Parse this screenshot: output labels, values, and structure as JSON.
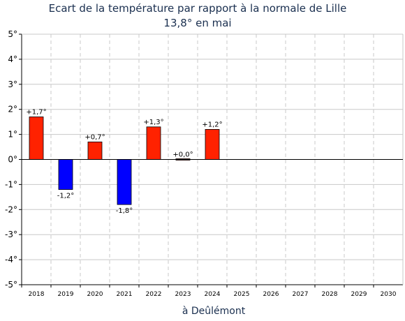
{
  "chart_data": {
    "type": "bar",
    "title": "Ecart de la température par rapport à la normale de Lille",
    "subtitle": "13,8° en mai",
    "xlabel": "à Deûlémont",
    "ylabel": "",
    "ylim": [
      -5,
      5
    ],
    "yticks": [
      {
        "value": 5,
        "label": "5°"
      },
      {
        "value": 4,
        "label": "4°"
      },
      {
        "value": 3,
        "label": "3°"
      },
      {
        "value": 2,
        "label": "2°"
      },
      {
        "value": 1,
        "label": "1°"
      },
      {
        "value": 0,
        "label": "0°"
      },
      {
        "value": -1,
        "label": "-1°"
      },
      {
        "value": -2,
        "label": "-2°"
      },
      {
        "value": -3,
        "label": "-3°"
      },
      {
        "value": -4,
        "label": "-4°"
      },
      {
        "value": -5,
        "label": "-5°"
      }
    ],
    "categories": [
      "2018",
      "2019",
      "2020",
      "2021",
      "2022",
      "2023",
      "2024",
      "2025",
      "2026",
      "2027",
      "2028",
      "2029",
      "2030"
    ],
    "values": [
      1.7,
      -1.2,
      0.7,
      -1.8,
      1.3,
      0.0,
      1.2,
      null,
      null,
      null,
      null,
      null,
      null
    ],
    "data_labels": [
      "+1,7°",
      "-1,2°",
      "+0,7°",
      "-1,8°",
      "+1,3°",
      "+0,0°",
      "+1,2°",
      "",
      "",
      "",
      "",
      "",
      ""
    ],
    "grid": true,
    "colors": {
      "positive": "#ff2200",
      "negative": "#0000ff",
      "grid": "#c8c8c8",
      "axis": "#000000",
      "title": "#1a2f4f"
    }
  }
}
